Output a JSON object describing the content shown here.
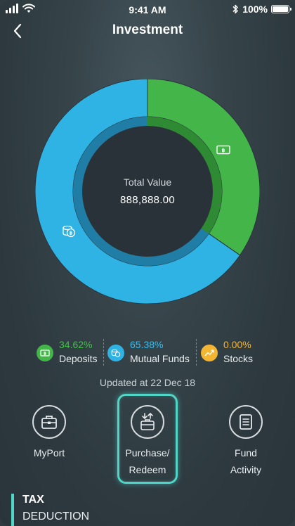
{
  "status_bar": {
    "time": "9:41 AM",
    "battery": "100%",
    "icons": [
      "signal-icon",
      "wifi-icon",
      "bluetooth-icon",
      "battery-icon"
    ]
  },
  "header": {
    "title": "Investment",
    "back_icon": "chevron-left-icon"
  },
  "summary": {
    "label": "Total Value",
    "value": "888,888.00"
  },
  "chart_data": {
    "type": "pie",
    "categories": [
      "Deposits",
      "Mutual Funds",
      "Stocks"
    ],
    "values": [
      34.62,
      65.38,
      0.0
    ],
    "colors": [
      "#44b549",
      "#2fb3e5",
      "#f4b533"
    ]
  },
  "legend": [
    {
      "percent": "34.62%",
      "name": "Deposits",
      "color": "#44b549",
      "icon": "deposit-icon"
    },
    {
      "percent": "65.38%",
      "name": "Mutual Funds",
      "color": "#2fb3e5",
      "icon": "mutual-funds-icon"
    },
    {
      "percent": "0.00%",
      "name": "Stocks",
      "color": "#f4b533",
      "icon": "stocks-icon"
    }
  ],
  "updated": "Updated at 22 Dec 18",
  "actions": [
    {
      "label": "MyPort",
      "icon": "briefcase-icon"
    },
    {
      "label_line1": "Purchase/",
      "label_line2": "Redeem",
      "icon": "purchase-redeem-icon",
      "highlighted": true
    },
    {
      "label_line1": "Fund",
      "label_line2": "Activity",
      "icon": "document-icon"
    }
  ],
  "tax": {
    "title": "TAX",
    "subtitle": "DEDUCTION",
    "accent": "#4fd6c6"
  }
}
